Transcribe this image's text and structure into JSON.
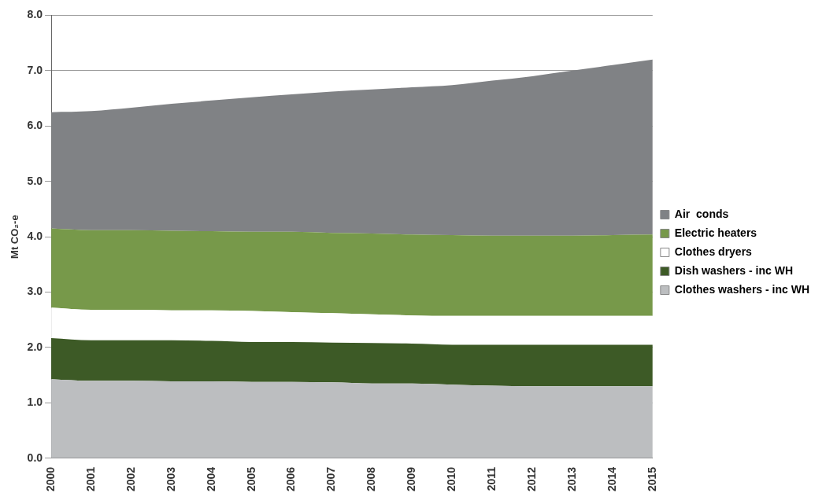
{
  "chart_data": {
    "type": "area",
    "stacked": true,
    "ylabel": "Mt CO₂-e",
    "categories": [
      "2000",
      "2001",
      "2002",
      "2003",
      "2004",
      "2005",
      "2006",
      "2007",
      "2008",
      "2009",
      "2010",
      "2011",
      "2012",
      "2013",
      "2014",
      "2015"
    ],
    "series": [
      {
        "name": "Clothes washers - inc WH",
        "color": "#bcbec0",
        "values": [
          1.43,
          1.4,
          1.4,
          1.39,
          1.39,
          1.38,
          1.38,
          1.37,
          1.35,
          1.35,
          1.33,
          1.31,
          1.3,
          1.3,
          1.3,
          1.3
        ]
      },
      {
        "name": "Dish washers - inc WH",
        "color": "#3d5a26",
        "values": [
          0.74,
          0.73,
          0.73,
          0.74,
          0.73,
          0.72,
          0.72,
          0.72,
          0.73,
          0.72,
          0.72,
          0.74,
          0.75,
          0.75,
          0.75,
          0.75
        ]
      },
      {
        "name": "Clothes dryers",
        "color": "#ffffff",
        "values": [
          0.55,
          0.55,
          0.55,
          0.54,
          0.55,
          0.56,
          0.54,
          0.53,
          0.52,
          0.51,
          0.52,
          0.52,
          0.52,
          0.52,
          0.52,
          0.52
        ]
      },
      {
        "name": "Electric heaters",
        "color": "#77994a",
        "values": [
          1.43,
          1.44,
          1.44,
          1.44,
          1.43,
          1.43,
          1.45,
          1.45,
          1.46,
          1.46,
          1.46,
          1.45,
          1.45,
          1.45,
          1.46,
          1.47
        ]
      },
      {
        "name": "Air  conds",
        "color": "#808285",
        "values": [
          2.1,
          2.15,
          2.21,
          2.29,
          2.36,
          2.43,
          2.48,
          2.55,
          2.6,
          2.66,
          2.71,
          2.8,
          2.88,
          2.98,
          3.07,
          3.16
        ]
      }
    ],
    "ylim": [
      0,
      8
    ],
    "yticks": [
      {
        "value": 0,
        "label": "0.0"
      },
      {
        "value": 1,
        "label": "1.0"
      },
      {
        "value": 2,
        "label": "2.0"
      },
      {
        "value": 3,
        "label": "3.0"
      },
      {
        "value": 4,
        "label": "4.0"
      },
      {
        "value": 5,
        "label": "5.0"
      },
      {
        "value": 6,
        "label": "6.0"
      },
      {
        "value": 7,
        "label": "7.0"
      },
      {
        "value": 8,
        "label": "8.0"
      }
    ],
    "grid": "y",
    "legend": "right"
  }
}
